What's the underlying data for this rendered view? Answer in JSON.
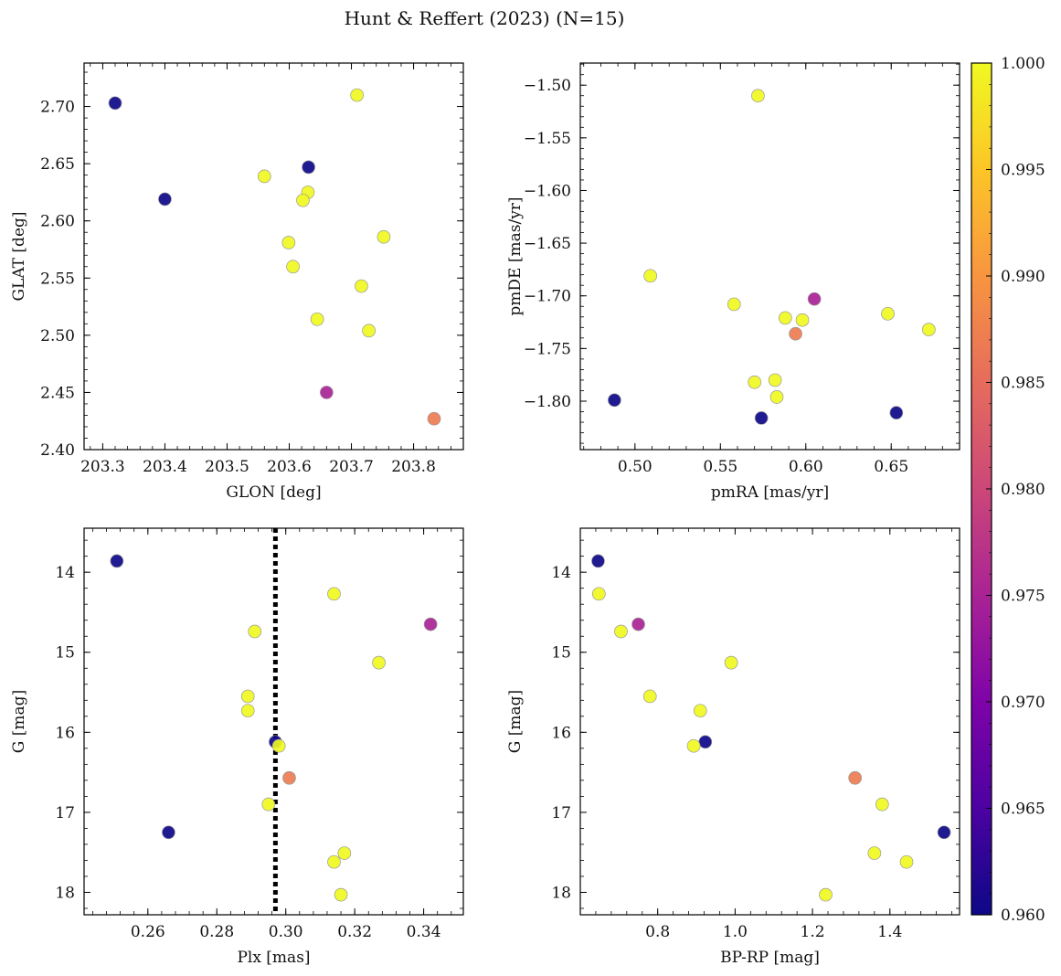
{
  "figure": {
    "title": "Hunt & Reffert (2023) (N=15)"
  },
  "colorbar": {
    "min": 0.96,
    "max": 1.0,
    "colormap": "plasma",
    "ticks": [
      "0.960",
      "0.965",
      "0.970",
      "0.975",
      "0.980",
      "0.985",
      "0.990",
      "0.995",
      "1.000"
    ]
  },
  "colors": {
    "point_edge": "#999999",
    "reference_line": "#000000"
  },
  "chart_data": [
    {
      "type": "scatter",
      "xlabel": "GLON [deg]",
      "ylabel": "GLAT [deg]",
      "xlim": [
        203.27,
        203.88
      ],
      "ylim": [
        2.4,
        2.738
      ],
      "y_inverted": false,
      "xticks": [
        "203.3",
        "203.4",
        "203.5",
        "203.6",
        "203.7",
        "203.8"
      ],
      "yticks": [
        "2.40",
        "2.45",
        "2.50",
        "2.55",
        "2.60",
        "2.65",
        "2.70"
      ],
      "points": [
        {
          "x": 203.32,
          "y": 2.703,
          "c": 0.96
        },
        {
          "x": 203.4,
          "y": 2.619,
          "c": 0.96
        },
        {
          "x": 203.631,
          "y": 2.647,
          "c": 0.96
        },
        {
          "x": 203.709,
          "y": 2.71,
          "c": 1.0
        },
        {
          "x": 203.56,
          "y": 2.639,
          "c": 1.0
        },
        {
          "x": 203.63,
          "y": 2.625,
          "c": 1.0
        },
        {
          "x": 203.622,
          "y": 2.618,
          "c": 1.0
        },
        {
          "x": 203.599,
          "y": 2.581,
          "c": 1.0
        },
        {
          "x": 203.606,
          "y": 2.56,
          "c": 1.0
        },
        {
          "x": 203.752,
          "y": 2.586,
          "c": 1.0
        },
        {
          "x": 203.716,
          "y": 2.543,
          "c": 1.0
        },
        {
          "x": 203.645,
          "y": 2.514,
          "c": 1.0
        },
        {
          "x": 203.728,
          "y": 2.504,
          "c": 1.0
        },
        {
          "x": 203.66,
          "y": 2.45,
          "c": 0.975
        },
        {
          "x": 203.833,
          "y": 2.427,
          "c": 0.987
        }
      ]
    },
    {
      "type": "scatter",
      "xlabel": "pmRA [mas/yr]",
      "ylabel": "pmDE [mas/yr]",
      "xlim": [
        0.468,
        0.69
      ],
      "ylim": [
        -1.846,
        -1.479
      ],
      "y_inverted": false,
      "xticks": [
        "0.50",
        "0.55",
        "0.60",
        "0.65"
      ],
      "yticks": [
        "−1.50",
        "−1.55",
        "−1.60",
        "−1.65",
        "−1.70",
        "−1.75",
        "−1.80"
      ],
      "points": [
        {
          "x": 0.572,
          "y": -1.51,
          "c": 1.0
        },
        {
          "x": 0.509,
          "y": -1.681,
          "c": 1.0
        },
        {
          "x": 0.558,
          "y": -1.708,
          "c": 1.0
        },
        {
          "x": 0.605,
          "y": -1.703,
          "c": 0.975
        },
        {
          "x": 0.588,
          "y": -1.721,
          "c": 1.0
        },
        {
          "x": 0.598,
          "y": -1.723,
          "c": 1.0
        },
        {
          "x": 0.648,
          "y": -1.717,
          "c": 1.0
        },
        {
          "x": 0.672,
          "y": -1.732,
          "c": 1.0
        },
        {
          "x": 0.594,
          "y": -1.736,
          "c": 0.987
        },
        {
          "x": 0.57,
          "y": -1.782,
          "c": 1.0
        },
        {
          "x": 0.582,
          "y": -1.78,
          "c": 1.0
        },
        {
          "x": 0.583,
          "y": -1.796,
          "c": 1.0
        },
        {
          "x": 0.488,
          "y": -1.799,
          "c": 0.96
        },
        {
          "x": 0.653,
          "y": -1.811,
          "c": 0.96
        },
        {
          "x": 0.574,
          "y": -1.816,
          "c": 0.96
        }
      ]
    },
    {
      "type": "scatter",
      "xlabel": "Plx [mas]",
      "ylabel": "G [mag]",
      "xlim": [
        0.2415,
        0.3515
      ],
      "ylim": [
        18.28,
        13.45
      ],
      "y_inverted": true,
      "xticks": [
        "0.26",
        "0.28",
        "0.30",
        "0.32",
        "0.34"
      ],
      "yticks": [
        "14",
        "15",
        "16",
        "17",
        "18"
      ],
      "vline": 0.297,
      "points": [
        {
          "x": 0.251,
          "y": 13.86,
          "c": 0.96
        },
        {
          "x": 0.314,
          "y": 14.27,
          "c": 1.0
        },
        {
          "x": 0.342,
          "y": 14.65,
          "c": 0.975
        },
        {
          "x": 0.291,
          "y": 14.74,
          "c": 1.0
        },
        {
          "x": 0.327,
          "y": 15.13,
          "c": 1.0
        },
        {
          "x": 0.289,
          "y": 15.55,
          "c": 1.0
        },
        {
          "x": 0.289,
          "y": 15.73,
          "c": 1.0
        },
        {
          "x": 0.297,
          "y": 16.12,
          "c": 0.96
        },
        {
          "x": 0.298,
          "y": 16.17,
          "c": 1.0
        },
        {
          "x": 0.301,
          "y": 16.57,
          "c": 0.987
        },
        {
          "x": 0.295,
          "y": 16.9,
          "c": 1.0
        },
        {
          "x": 0.266,
          "y": 17.25,
          "c": 0.96
        },
        {
          "x": 0.317,
          "y": 17.51,
          "c": 1.0
        },
        {
          "x": 0.314,
          "y": 17.62,
          "c": 1.0
        },
        {
          "x": 0.316,
          "y": 18.03,
          "c": 1.0
        }
      ]
    },
    {
      "type": "scatter",
      "xlabel": "BP-RP [mag]",
      "ylabel": "G [mag]",
      "xlim": [
        0.6,
        1.58
      ],
      "ylim": [
        18.28,
        13.45
      ],
      "y_inverted": true,
      "xticks": [
        "0.8",
        "1.0",
        "1.2",
        "1.4"
      ],
      "yticks": [
        "14",
        "15",
        "16",
        "17",
        "18"
      ],
      "points": [
        {
          "x": 0.646,
          "y": 13.86,
          "c": 0.96
        },
        {
          "x": 0.648,
          "y": 14.27,
          "c": 1.0
        },
        {
          "x": 0.75,
          "y": 14.65,
          "c": 0.975
        },
        {
          "x": 0.705,
          "y": 14.74,
          "c": 1.0
        },
        {
          "x": 0.99,
          "y": 15.13,
          "c": 1.0
        },
        {
          "x": 0.78,
          "y": 15.55,
          "c": 1.0
        },
        {
          "x": 0.91,
          "y": 15.73,
          "c": 1.0
        },
        {
          "x": 0.923,
          "y": 16.12,
          "c": 0.96
        },
        {
          "x": 0.893,
          "y": 16.17,
          "c": 1.0
        },
        {
          "x": 1.31,
          "y": 16.57,
          "c": 0.987
        },
        {
          "x": 1.38,
          "y": 16.9,
          "c": 1.0
        },
        {
          "x": 1.54,
          "y": 17.25,
          "c": 0.96
        },
        {
          "x": 1.36,
          "y": 17.51,
          "c": 1.0
        },
        {
          "x": 1.443,
          "y": 17.62,
          "c": 1.0
        },
        {
          "x": 1.234,
          "y": 18.03,
          "c": 1.0
        }
      ]
    }
  ]
}
